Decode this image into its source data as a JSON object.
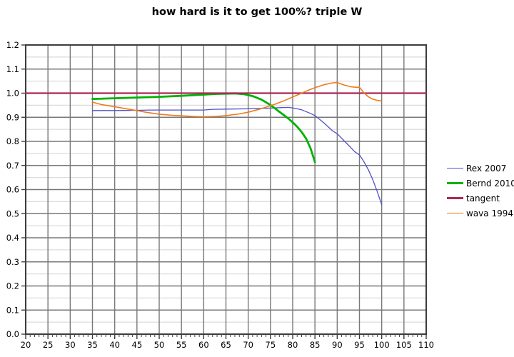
{
  "title": "how hard is it to get 100%? triple W",
  "chart_data": {
    "type": "line",
    "title": "how hard is it to get 100%? triple W",
    "x_axis": {
      "min": 20,
      "max": 110,
      "major_step": 5,
      "minor_tick_step": 1,
      "tick_labels": [
        "20",
        "25",
        "30",
        "35",
        "40",
        "45",
        "50",
        "55",
        "60",
        "65",
        "70",
        "75",
        "80",
        "85",
        "90",
        "95",
        "100",
        "105",
        "110"
      ]
    },
    "y_axis": {
      "min": 0.0,
      "max": 1.2,
      "major_step": 0.1,
      "minor_grid_step": 0.05,
      "tick_labels": [
        "0.0",
        "0.1",
        "0.2",
        "0.3",
        "0.4",
        "0.5",
        "0.6",
        "0.7",
        "0.8",
        "0.9",
        "1.0",
        "1.1",
        "1.2"
      ]
    },
    "grid": {
      "major_color": "#787878",
      "minor_color": "#dcdcdc",
      "axis_color": "#3c3c3c",
      "background": "#ffffff"
    },
    "legend": {
      "position": "right",
      "entries": [
        "Rex 2007",
        "Bernd 2010",
        "tangent",
        "wava 1994"
      ]
    },
    "series": [
      {
        "name": "Rex 2007",
        "color": "#5050cc",
        "stroke_width": 1.3,
        "points": [
          [
            35,
            0.928
          ],
          [
            40,
            0.928
          ],
          [
            45,
            0.929
          ],
          [
            48,
            0.93
          ],
          [
            50,
            0.93
          ],
          [
            55,
            0.93
          ],
          [
            60,
            0.93
          ],
          [
            62,
            0.933
          ],
          [
            65,
            0.934
          ],
          [
            70,
            0.935
          ],
          [
            73,
            0.937
          ],
          [
            75,
            0.938
          ],
          [
            77,
            0.94
          ],
          [
            79,
            0.941
          ],
          [
            80,
            0.939
          ],
          [
            82,
            0.931
          ],
          [
            84,
            0.916
          ],
          [
            85,
            0.907
          ],
          [
            87,
            0.877
          ],
          [
            89,
            0.843
          ],
          [
            90,
            0.832
          ],
          [
            92,
            0.794
          ],
          [
            94,
            0.756
          ],
          [
            95,
            0.744
          ],
          [
            96,
            0.716
          ],
          [
            97,
            0.682
          ],
          [
            98,
            0.641
          ],
          [
            99,
            0.592
          ],
          [
            100,
            0.537
          ]
        ]
      },
      {
        "name": "Bernd 2010",
        "color": "#00b200",
        "stroke_width": 2.8,
        "points": [
          [
            35,
            0.976
          ],
          [
            40,
            0.979
          ],
          [
            45,
            0.982
          ],
          [
            50,
            0.985
          ],
          [
            55,
            0.989
          ],
          [
            60,
            0.994
          ],
          [
            63,
            0.997
          ],
          [
            65,
            0.998
          ],
          [
            67,
            0.999
          ],
          [
            69,
            0.996
          ],
          [
            71,
            0.988
          ],
          [
            73,
            0.973
          ],
          [
            75,
            0.951
          ],
          [
            77,
            0.923
          ],
          [
            79,
            0.895
          ],
          [
            80,
            0.879
          ],
          [
            81,
            0.861
          ],
          [
            82,
            0.839
          ],
          [
            83,
            0.812
          ],
          [
            84,
            0.772
          ],
          [
            85,
            0.714
          ]
        ]
      },
      {
        "name": "tangent",
        "color": "#aa2857",
        "stroke_width": 2.2,
        "points": [
          [
            20,
            1.0
          ],
          [
            110,
            1.0
          ]
        ]
      },
      {
        "name": "wava 1994",
        "color": "#ef7a1a",
        "stroke_width": 1.6,
        "points": [
          [
            35,
            0.963
          ],
          [
            37,
            0.953
          ],
          [
            40,
            0.944
          ],
          [
            43,
            0.934
          ],
          [
            45,
            0.928
          ],
          [
            47,
            0.921
          ],
          [
            50,
            0.913
          ],
          [
            53,
            0.908
          ],
          [
            55,
            0.906
          ],
          [
            58,
            0.903
          ],
          [
            60,
            0.902
          ],
          [
            63,
            0.904
          ],
          [
            65,
            0.907
          ],
          [
            68,
            0.914
          ],
          [
            70,
            0.921
          ],
          [
            72,
            0.931
          ],
          [
            74,
            0.942
          ],
          [
            76,
            0.954
          ],
          [
            78,
            0.968
          ],
          [
            80,
            0.984
          ],
          [
            82,
            1.0
          ],
          [
            84,
            1.016
          ],
          [
            85,
            1.023
          ],
          [
            87,
            1.035
          ],
          [
            89,
            1.043
          ],
          [
            90,
            1.044
          ],
          [
            91.5,
            1.034
          ],
          [
            93,
            1.027
          ],
          [
            94.5,
            1.024
          ],
          [
            95,
            1.025
          ],
          [
            96,
            1.002
          ],
          [
            97,
            0.985
          ],
          [
            98,
            0.975
          ],
          [
            99,
            0.97
          ],
          [
            100,
            0.968
          ]
        ]
      }
    ]
  }
}
